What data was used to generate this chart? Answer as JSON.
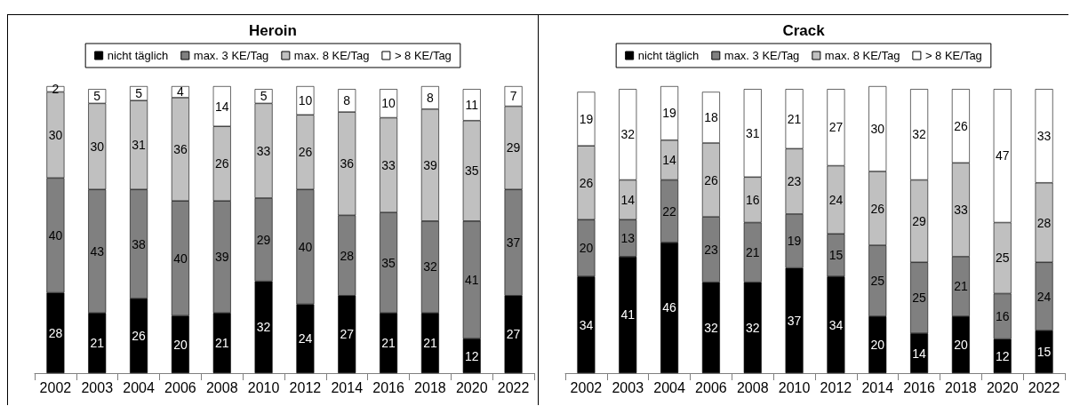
{
  "chart_data": [
    {
      "type": "bar",
      "title": "Heroin",
      "stacked": true,
      "data_labels": true,
      "legend": "top",
      "categories": [
        "2002",
        "2003",
        "2004",
        "2006",
        "2008",
        "2010",
        "2012",
        "2014",
        "2016",
        "2018",
        "2020",
        "2022"
      ],
      "series": [
        {
          "name": "nicht täglich",
          "color": "#000000",
          "values": [
            28,
            21,
            26,
            20,
            21,
            32,
            24,
            27,
            21,
            21,
            12,
            27
          ]
        },
        {
          "name": "max. 3 KE/Tag",
          "color": "#808080",
          "values": [
            40,
            43,
            38,
            40,
            39,
            29,
            40,
            28,
            35,
            32,
            41,
            37
          ]
        },
        {
          "name": "max. 8 KE/Tag",
          "color": "#c0c0c0",
          "values": [
            30,
            30,
            31,
            36,
            26,
            33,
            26,
            36,
            33,
            39,
            35,
            29
          ]
        },
        {
          "name": "> 8 KE/Tag",
          "color": "#ffffff",
          "values": [
            2,
            5,
            5,
            4,
            14,
            5,
            10,
            8,
            10,
            8,
            11,
            7
          ]
        }
      ]
    },
    {
      "type": "bar",
      "title": "Crack",
      "stacked": true,
      "data_labels": true,
      "legend": "top",
      "categories": [
        "2002",
        "2003",
        "2004",
        "2006",
        "2008",
        "2010",
        "2012",
        "2014",
        "2016",
        "2018",
        "2020",
        "2022"
      ],
      "series": [
        {
          "name": "nicht täglich",
          "color": "#000000",
          "values": [
            34,
            41,
            46,
            32,
            32,
            37,
            34,
            20,
            14,
            20,
            12,
            15
          ]
        },
        {
          "name": "max. 3 KE/Tag",
          "color": "#808080",
          "values": [
            20,
            13,
            22,
            23,
            21,
            19,
            15,
            25,
            25,
            21,
            16,
            24
          ]
        },
        {
          "name": "max. 8 KE/Tag",
          "color": "#c0c0c0",
          "values": [
            26,
            14,
            14,
            26,
            16,
            23,
            24,
            26,
            29,
            33,
            25,
            28
          ]
        },
        {
          "name": "> 8 KE/Tag",
          "color": "#ffffff",
          "values": [
            19,
            32,
            19,
            18,
            31,
            21,
            27,
            30,
            32,
            26,
            47,
            33
          ]
        }
      ]
    }
  ]
}
